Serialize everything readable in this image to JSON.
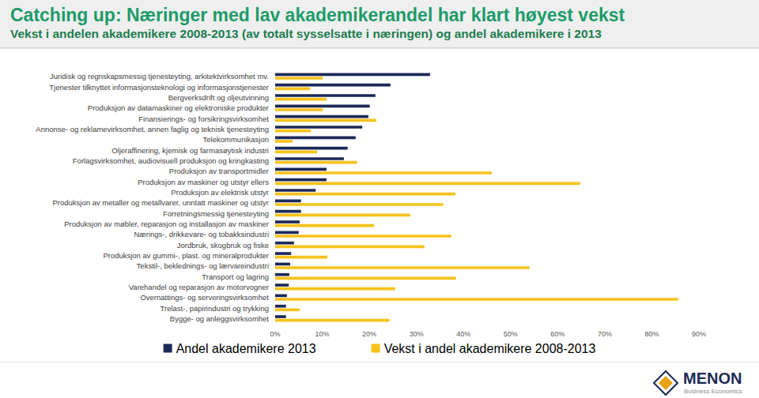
{
  "chart_data": {
    "type": "bar",
    "orientation": "horizontal",
    "title": "Catching up: Næringer med lav akademikerandel har klart høyest vekst",
    "subtitle": "Vekst i andelen akademikere 2008-2013 (av totalt sysselsatte i næringen) og andel akademikere i 2013",
    "categories": [
      "Juridisk og regnskapsmessig tjenesteyting, arkitektvirksomhet mv.",
      "Tjenester tilknyttet informasjonsteknologi og informasjonstjenester",
      "Bergverksdrift og oljeutvinning",
      "Produksjon av datamaskiner og elektroniske produkter",
      "Finansierings- og forsikringsvirksomhet",
      "Annonse- og reklamevirksomhet, annen faglig og teknisk tjenesteyting",
      "Telekommunikasjon",
      "Oljeraffinering, kjemisk og farmasøytisk industri",
      "Forlagsvirksomhet, audiovisuell produksjon og kringkasting",
      "Produksjon av transportmidler",
      "Produksjon av maskiner og utstyr ellers",
      "Produksjon av elektrisk utstyr",
      "Produksjon av metaller og metallvarer, unntatt maskiner og utstyr",
      "Forretningsmessig tjenesteyting",
      "Produksjon av møbler, reparasjon og installasjon av maskiner",
      "Nærings-, drikkevare- og tobakksindustri",
      "Jordbruk, skogbruk og fiske",
      "Produksjon av gummi-, plast. og mineralprodukter",
      "Tekstil-, beklednings- og lærvareindustri",
      "Transport og lagring",
      "Varehandel og reparasjon av motorvogner",
      "Overnattings- og serveringsvirksomhet",
      "Trelast-, papirindustri og trykking",
      "Bygge- og anleggsvirksomhet"
    ],
    "series": [
      {
        "name": "Andel akademikere 2013",
        "color": "#1c2957",
        "values": [
          32.9,
          24.5,
          21.3,
          20.1,
          19.8,
          18.5,
          17.1,
          15.4,
          14.6,
          10.9,
          10.9,
          8.6,
          5.5,
          5.5,
          5.2,
          5.0,
          4.0,
          3.4,
          3.2,
          3.0,
          2.9,
          2.5,
          2.3,
          2.3
        ]
      },
      {
        "name": "Vekst i andel akademikere 2008-2013",
        "color": "#f7c21b",
        "values": [
          10.1,
          7.4,
          10.9,
          10.1,
          21.5,
          7.6,
          3.7,
          8.9,
          17.4,
          46.0,
          64.8,
          38.3,
          35.7,
          28.7,
          21.0,
          37.4,
          31.7,
          11.1,
          54.0,
          38.4,
          25.5,
          85.6,
          5.2,
          24.3
        ]
      }
    ],
    "xlim": [
      0,
      90
    ],
    "xticks": [
      {
        "value": 0,
        "label": "0%"
      },
      {
        "value": 10,
        "label": "10%"
      },
      {
        "value": 20,
        "label": "20%"
      },
      {
        "value": 30,
        "label": "30%"
      },
      {
        "value": 40,
        "label": "40%"
      },
      {
        "value": 50,
        "label": "50%"
      },
      {
        "value": 60,
        "label": "60%"
      },
      {
        "value": 70,
        "label": "70%"
      },
      {
        "value": 80,
        "label": "80%"
      },
      {
        "value": 90,
        "label": "90%"
      }
    ],
    "grid": false,
    "legend": "bottom",
    "annotations": [
      "MENON",
      "Business Economics"
    ]
  }
}
